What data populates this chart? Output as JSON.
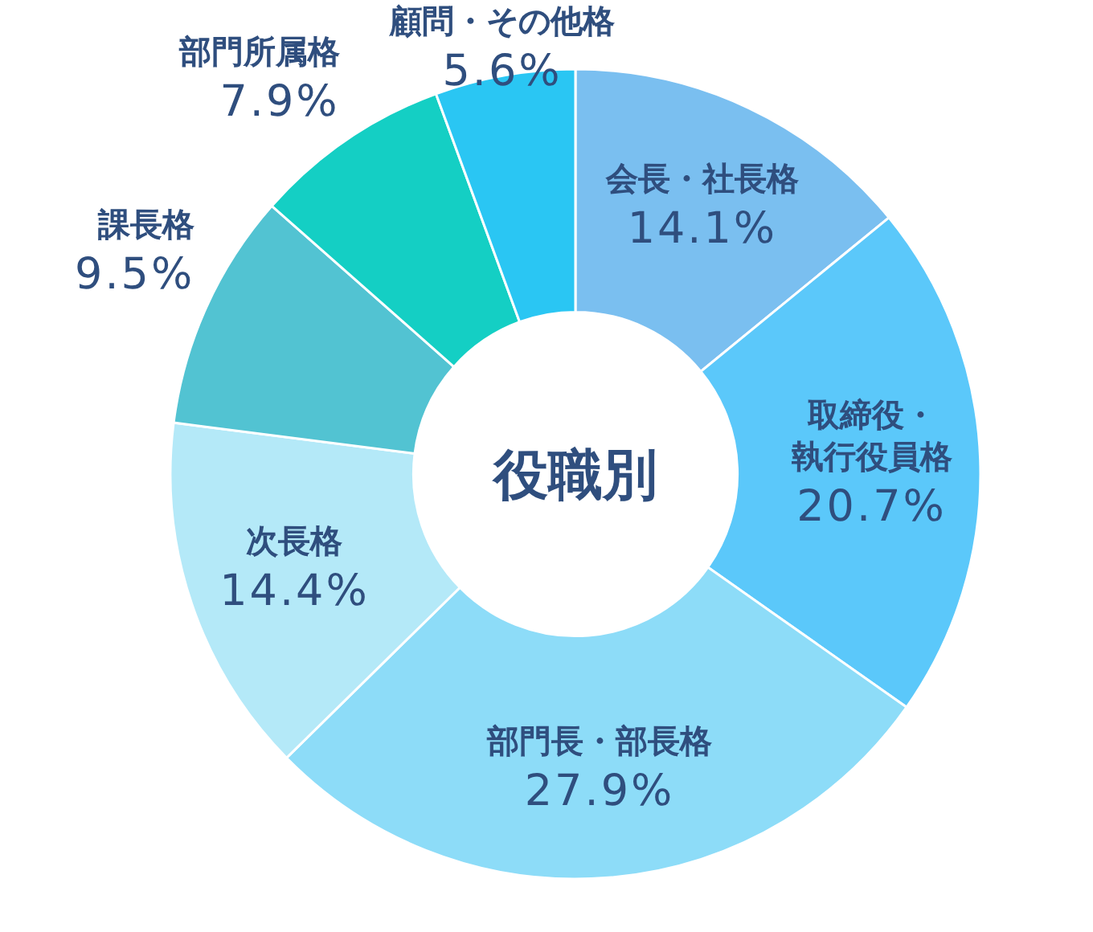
{
  "chart_data": {
    "type": "donut",
    "title": "役職別",
    "categories": [
      "会長・社長格",
      "取締役・執行役員格",
      "部門長・部長格",
      "次長格",
      "課長格",
      "部門所属格",
      "顧問・その他格"
    ],
    "values": [
      14.1,
      20.7,
      27.9,
      14.4,
      9.5,
      7.9,
      5.6
    ],
    "value_labels": [
      "14.1%",
      "20.7%",
      "27.9%",
      "14.4%",
      "9.5%",
      "7.9%",
      "5.6%"
    ],
    "colors": [
      "#7abff0",
      "#5bc8fa",
      "#8ddcf8",
      "#b4e9f8",
      "#52c3d2",
      "#14cfc4",
      "#2ac6f3"
    ]
  }
}
